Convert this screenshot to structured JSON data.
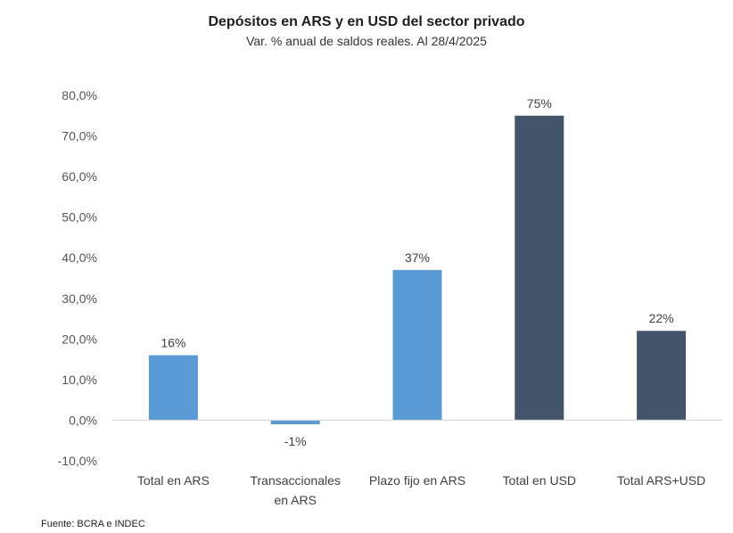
{
  "chart_data": {
    "type": "bar",
    "title": "Depósitos en ARS y en USD del sector privado",
    "subtitle": "Var. % anual de saldos reales. Al 28/4/2025",
    "categories": [
      [
        "Total en ARS"
      ],
      [
        "Transaccionales",
        "en ARS"
      ],
      [
        "Plazo fijo en ARS"
      ],
      [
        "Total en USD"
      ],
      [
        "Total ARS+USD"
      ]
    ],
    "values": [
      16,
      -1,
      37,
      75,
      22
    ],
    "data_labels": [
      "16%",
      "-1%",
      "37%",
      "75%",
      "22%"
    ],
    "bar_colors": [
      "#5b9bd5",
      "#5b9bd5",
      "#5b9bd5",
      "#44546a",
      "#44546a"
    ],
    "ylim": [
      -10,
      80
    ],
    "yticks": [
      -10,
      0,
      10,
      20,
      30,
      40,
      50,
      60,
      70,
      80
    ],
    "ytick_labels": [
      "-10,0%",
      "0,0%",
      "10,0%",
      "20,0%",
      "30,0%",
      "40,0%",
      "50,0%",
      "60,0%",
      "70,0%",
      "80,0%"
    ],
    "xlabel": "",
    "ylabel": "",
    "grid": false,
    "legend": "none"
  },
  "source": "Fuente: BCRA e INDEC",
  "colors": {
    "ars_bars": "#5b9bd5",
    "usd_bars": "#44546a",
    "axis_line": "#d9d9d9"
  }
}
